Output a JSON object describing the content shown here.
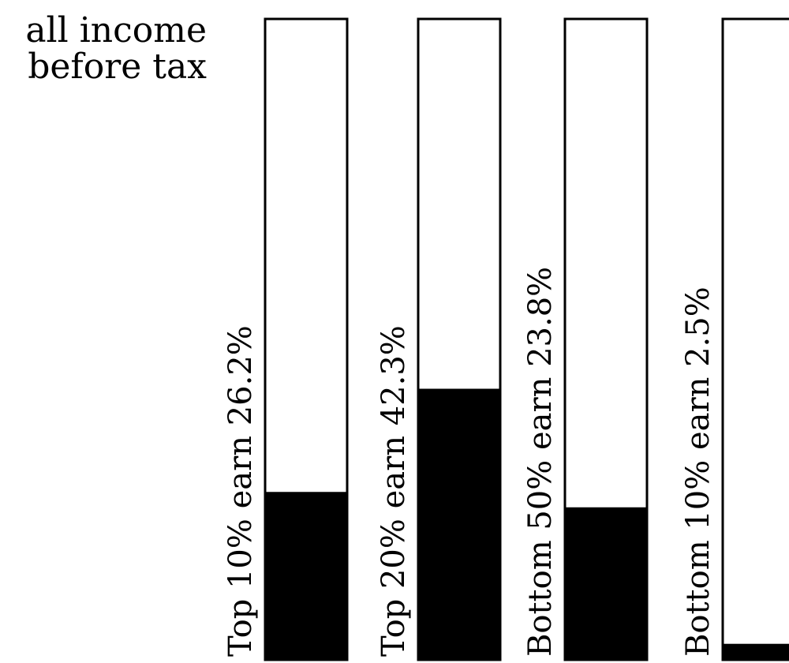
{
  "chart_data": {
    "type": "bar",
    "title_lines": [
      "all income",
      "before tax"
    ],
    "ylim": [
      0,
      100
    ],
    "unit": "%",
    "categories": [
      "Top 10% earn 26.2%",
      "Top 20% earn 42.3%",
      "Bottom 50% earn 23.8%",
      "Bottom 10% earn 2.5%"
    ],
    "values": [
      26.2,
      42.3,
      23.8,
      2.5
    ],
    "bar_fill_color": "#000000",
    "bar_empty_color": "#ffffff",
    "orientation": "vertical",
    "label_orientation": "rotated-90"
  }
}
